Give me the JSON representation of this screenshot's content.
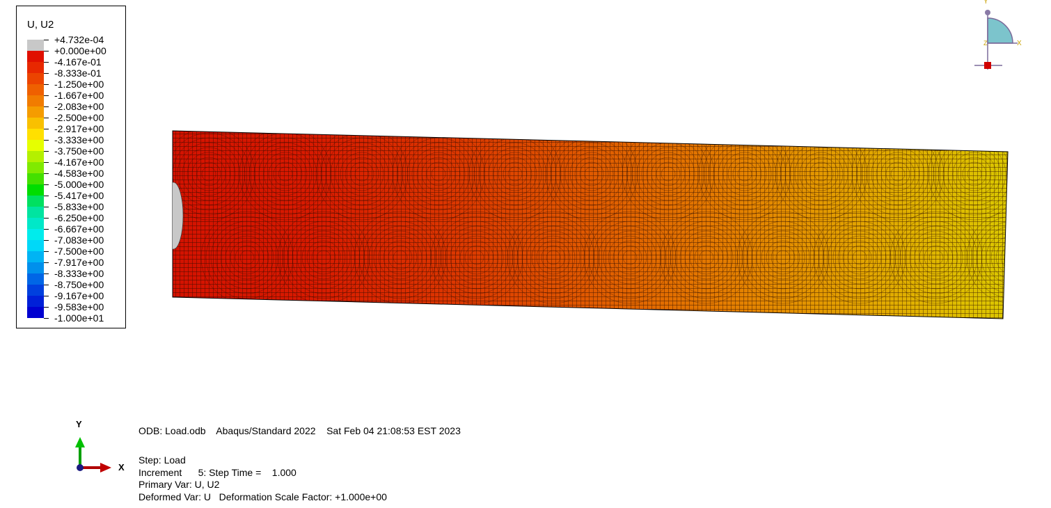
{
  "legend": {
    "title": "U, U2",
    "labels": [
      "+4.732e-04",
      "+0.000e+00",
      "-4.167e-01",
      "-8.333e-01",
      "-1.250e+00",
      "-1.667e+00",
      "-2.083e+00",
      "-2.500e+00",
      "-2.917e+00",
      "-3.333e+00",
      "-3.750e+00",
      "-4.167e+00",
      "-4.583e+00",
      "-5.000e+00",
      "-5.417e+00",
      "-5.833e+00",
      "-6.250e+00",
      "-6.667e+00",
      "-7.083e+00",
      "-7.500e+00",
      "-7.917e+00",
      "-8.333e+00",
      "-8.750e+00",
      "-9.167e+00",
      "-9.583e+00",
      "-1.000e+01"
    ],
    "colors": [
      "#c8c8c8",
      "#e01000",
      "#e82800",
      "#ec4400",
      "#ef6000",
      "#f17c00",
      "#f59c00",
      "#f9c000",
      "#ffe000",
      "#e6ff00",
      "#b4f000",
      "#80ea00",
      "#44e000",
      "#00dd00",
      "#00e060",
      "#00e4a0",
      "#00e8c8",
      "#00ecec",
      "#00d8f8",
      "#00b4f4",
      "#0090ec",
      "#0066e6",
      "#0040de",
      "#0020d8",
      "#0000d0"
    ]
  },
  "model": {
    "gradient_colors": [
      "#d41200",
      "#d81a00",
      "#dc3600",
      "#e05a00",
      "#e47e00",
      "#e2a600",
      "#dcc800"
    ],
    "mesh_color": "#2a0a00",
    "highlight_color": "#c8c8c8"
  },
  "info": {
    "odb_line": "ODB: Load.odb    Abaqus/Standard 2022    Sat Feb 04 21:08:53 EST 2023",
    "step": "Step: Load",
    "increment": "Increment      5: Step Time =    1.000",
    "primary_var": "Primary Var: U, U2",
    "deformed_var": "Deformed Var: U   Deformation Scale Factor: +1.000e+00"
  },
  "triad": {
    "y_label": "Y",
    "x_label": "X"
  },
  "view_cube": {
    "y_label": "Y",
    "x_label": "X",
    "z_label": "Z"
  }
}
